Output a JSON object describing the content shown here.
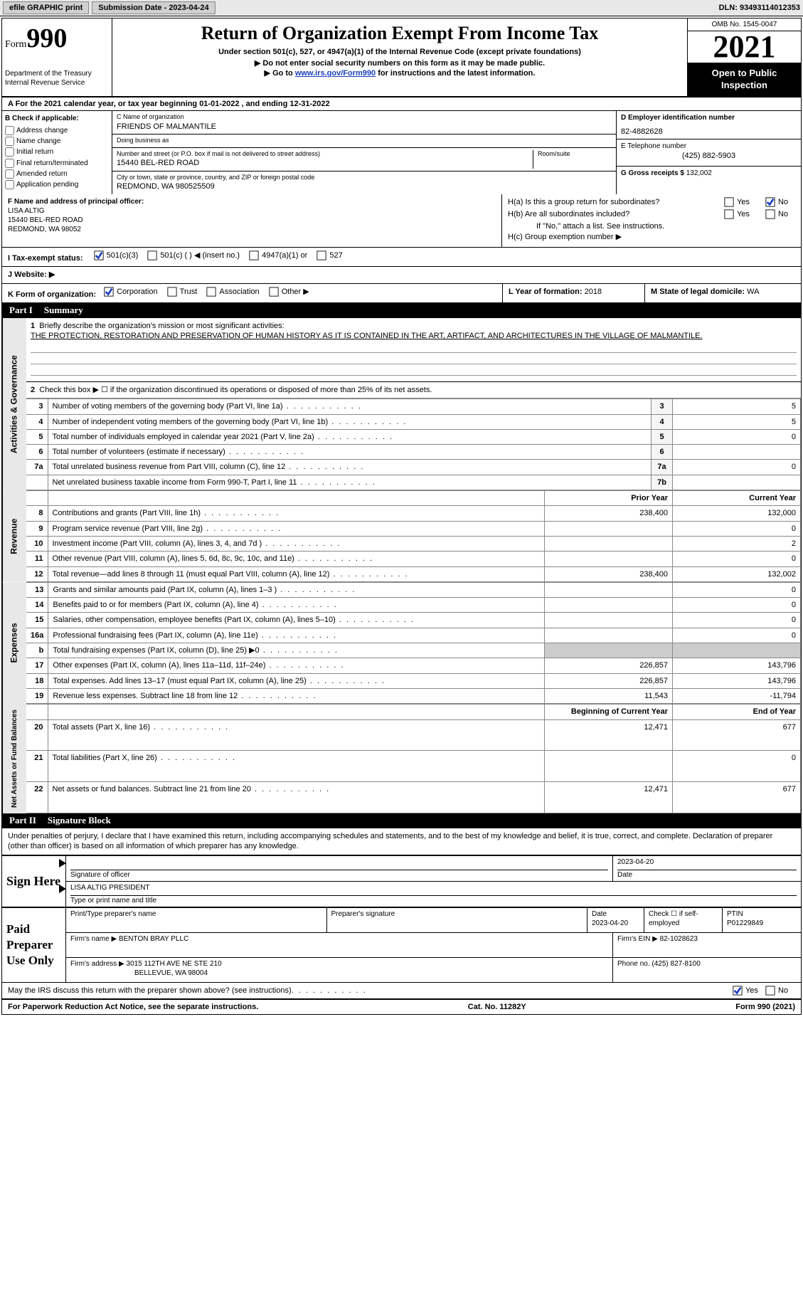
{
  "topbar": {
    "efile_label": "efile GRAPHIC print",
    "submission_label": "Submission Date - 2023-04-24",
    "dln_label": "DLN: 93493114012353"
  },
  "header": {
    "form_word": "Form",
    "form_num": "990",
    "dept": "Department of the Treasury\nInternal Revenue Service",
    "title": "Return of Organization Exempt From Income Tax",
    "subtitle": "Under section 501(c), 527, or 4947(a)(1) of the Internal Revenue Code (except private foundations)",
    "warn1": "▶ Do not enter social security numbers on this form as it may be made public.",
    "warn2_pre": "▶ Go to ",
    "warn2_link": "www.irs.gov/Form990",
    "warn2_post": " for instructions and the latest information.",
    "omb": "OMB No. 1545-0047",
    "year": "2021",
    "pub": "Open to Public Inspection"
  },
  "sectionA": "A For the 2021 calendar year, or tax year beginning 01-01-2022   , and ending 12-31-2022",
  "colB": {
    "heading": "B Check if applicable:",
    "opts": [
      "Address change",
      "Name change",
      "Initial return",
      "Final return/terminated",
      "Amended return",
      "Application pending"
    ]
  },
  "c": {
    "name_lbl": "C Name of organization",
    "name": "FRIENDS OF MALMANTILE",
    "dba_lbl": "Doing business as",
    "dba": "",
    "addr_lbl": "Number and street (or P.O. box if mail is not delivered to street address)",
    "room_lbl": "Room/suite",
    "addr": "15440 BEL-RED ROAD",
    "city_lbl": "City or town, state or province, country, and ZIP or foreign postal code",
    "city": "REDMOND, WA  980525509"
  },
  "d": {
    "ein_lbl": "D Employer identification number",
    "ein": "82-4882628",
    "tel_lbl": "E Telephone number",
    "tel": "(425) 882-5903",
    "gross_lbl": "G Gross receipts $",
    "gross": "132,002"
  },
  "f": {
    "lbl": "F Name and address of principal officer:",
    "name": "LISA ALTIG",
    "addr1": "15440 BEL-RED ROAD",
    "addr2": "REDMOND, WA  98052"
  },
  "h": {
    "ha": "H(a)  Is this a group return for subordinates?",
    "hb": "H(b)  Are all subordinates included?",
    "hb_note": "If \"No,\" attach a list. See instructions.",
    "hc": "H(c)  Group exemption number ▶",
    "yes": "Yes",
    "no": "No",
    "ha_answer": "no"
  },
  "i": {
    "lbl": "I  Tax-exempt status:",
    "opts": [
      "501(c)(3)",
      "501(c) (  ) ◀ (insert no.)",
      "4947(a)(1) or",
      "527"
    ],
    "checked": 0
  },
  "j": {
    "lbl": "J  Website: ▶"
  },
  "k": {
    "lbl": "K Form of organization:",
    "opts": [
      "Corporation",
      "Trust",
      "Association",
      "Other ▶"
    ],
    "checked": 0
  },
  "l": {
    "lbl": "L Year of formation:",
    "val": "2018"
  },
  "m": {
    "lbl": "M State of legal domicile:",
    "val": "WA"
  },
  "part1": {
    "num": "Part I",
    "title": "Summary",
    "line1_lbl": "Briefly describe the organization's mission or most significant activities:",
    "mission": "THE PROTECTION, RESTORATION AND PRESERVATION OF HUMAN HISTORY AS IT IS CONTAINED IN THE ART, ARTIFACT, AND ARCHITECTURES IN THE VILLAGE OF MALMANTILE.",
    "line2": "Check this box ▶ ☐ if the organization discontinued its operations or disposed of more than 25% of its net assets.",
    "tabs": {
      "gov": "Activities & Governance",
      "rev": "Revenue",
      "exp": "Expenses",
      "net": "Net Assets or Fund Balances"
    },
    "prior_hdr": "Prior Year",
    "curr_hdr": "Current Year",
    "boy_hdr": "Beginning of Current Year",
    "eoy_hdr": "End of Year",
    "gov_lines": [
      {
        "n": "3",
        "t": "Number of voting members of the governing body (Part VI, line 1a)",
        "box": "3",
        "v": "5"
      },
      {
        "n": "4",
        "t": "Number of independent voting members of the governing body (Part VI, line 1b)",
        "box": "4",
        "v": "5"
      },
      {
        "n": "5",
        "t": "Total number of individuals employed in calendar year 2021 (Part V, line 2a)",
        "box": "5",
        "v": "0"
      },
      {
        "n": "6",
        "t": "Total number of volunteers (estimate if necessary)",
        "box": "6",
        "v": ""
      },
      {
        "n": "7a",
        "t": "Total unrelated business revenue from Part VIII, column (C), line 12",
        "box": "7a",
        "v": "0"
      },
      {
        "n": "",
        "t": "Net unrelated business taxable income from Form 990-T, Part I, line 11",
        "box": "7b",
        "v": ""
      }
    ],
    "rev_lines": [
      {
        "n": "8",
        "t": "Contributions and grants (Part VIII, line 1h)",
        "p": "238,400",
        "c": "132,000"
      },
      {
        "n": "9",
        "t": "Program service revenue (Part VIII, line 2g)",
        "p": "",
        "c": "0"
      },
      {
        "n": "10",
        "t": "Investment income (Part VIII, column (A), lines 3, 4, and 7d )",
        "p": "",
        "c": "2"
      },
      {
        "n": "11",
        "t": "Other revenue (Part VIII, column (A), lines 5, 6d, 8c, 9c, 10c, and 11e)",
        "p": "",
        "c": "0"
      },
      {
        "n": "12",
        "t": "Total revenue—add lines 8 through 11 (must equal Part VIII, column (A), line 12)",
        "p": "238,400",
        "c": "132,002"
      }
    ],
    "exp_lines": [
      {
        "n": "13",
        "t": "Grants and similar amounts paid (Part IX, column (A), lines 1–3 )",
        "p": "",
        "c": "0"
      },
      {
        "n": "14",
        "t": "Benefits paid to or for members (Part IX, column (A), line 4)",
        "p": "",
        "c": "0"
      },
      {
        "n": "15",
        "t": "Salaries, other compensation, employee benefits (Part IX, column (A), lines 5–10)",
        "p": "",
        "c": "0"
      },
      {
        "n": "16a",
        "t": "Professional fundraising fees (Part IX, column (A), line 11e)",
        "p": "",
        "c": "0"
      },
      {
        "n": "b",
        "t": "Total fundraising expenses (Part IX, column (D), line 25) ▶0",
        "p": "shade",
        "c": "shade"
      },
      {
        "n": "17",
        "t": "Other expenses (Part IX, column (A), lines 11a–11d, 11f–24e)",
        "p": "226,857",
        "c": "143,796"
      },
      {
        "n": "18",
        "t": "Total expenses. Add lines 13–17 (must equal Part IX, column (A), line 25)",
        "p": "226,857",
        "c": "143,796"
      },
      {
        "n": "19",
        "t": "Revenue less expenses. Subtract line 18 from line 12",
        "p": "11,543",
        "c": "-11,794"
      }
    ],
    "net_lines": [
      {
        "n": "20",
        "t": "Total assets (Part X, line 16)",
        "p": "12,471",
        "c": "677"
      },
      {
        "n": "21",
        "t": "Total liabilities (Part X, line 26)",
        "p": "",
        "c": "0"
      },
      {
        "n": "22",
        "t": "Net assets or fund balances. Subtract line 21 from line 20",
        "p": "12,471",
        "c": "677"
      }
    ]
  },
  "part2": {
    "num": "Part II",
    "title": "Signature Block",
    "declare": "Under penalties of perjury, I declare that I have examined this return, including accompanying schedules and statements, and to the best of my knowledge and belief, it is true, correct, and complete. Declaration of preparer (other than officer) is based on all information of which preparer has any knowledge."
  },
  "sign": {
    "side": "Sign Here",
    "sig_lbl": "Signature of officer",
    "date": "2023-04-20",
    "date_lbl": "Date",
    "name": "LISA ALTIG  PRESIDENT",
    "name_lbl": "Type or print name and title"
  },
  "paid": {
    "side": "Paid Preparer Use Only",
    "name_lbl": "Print/Type preparer's name",
    "sig_lbl": "Preparer's signature",
    "date_lbl": "Date",
    "date": "2023-04-20",
    "self_lbl": "Check ☐ if self-employed",
    "ptin_lbl": "PTIN",
    "ptin": "P01229849",
    "firm_lbl": "Firm's name   ▶",
    "firm": "BENTON BRAY PLLC",
    "ein_lbl": "Firm's EIN ▶",
    "ein": "82-1028623",
    "addr_lbl": "Firm's address ▶",
    "addr1": "3015 112TH AVE NE STE 210",
    "addr2": "BELLEVUE, WA  98004",
    "phone_lbl": "Phone no.",
    "phone": "(425) 827-8100"
  },
  "discuss": {
    "q": "May the IRS discuss this return with the preparer shown above? (see instructions)",
    "yes": "Yes",
    "no": "No",
    "answer": "yes"
  },
  "footer": {
    "left": "For Paperwork Reduction Act Notice, see the separate instructions.",
    "mid": "Cat. No. 11282Y",
    "right": "Form 990 (2021)"
  },
  "colors": {
    "link": "#1a3fbf",
    "shade": "#cccccc",
    "side_bg": "#e8e8e8"
  }
}
